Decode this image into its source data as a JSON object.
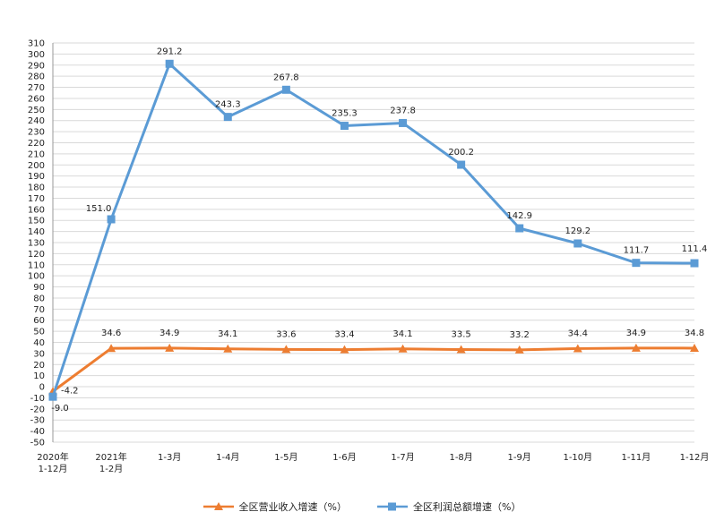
{
  "colors": {
    "revenue": "#ED7D31",
    "profit": "#5B9BD5",
    "grid": "#D9D9D9",
    "axis": "#999999"
  },
  "chart_data": {
    "type": "line",
    "categories": [
      [
        "2020年",
        "1-12月"
      ],
      [
        "2021年",
        "1-2月"
      ],
      [
        "1-3月"
      ],
      [
        "1-4月"
      ],
      [
        "1-5月"
      ],
      [
        "1-6月"
      ],
      [
        "1-7月"
      ],
      [
        "1-8月"
      ],
      [
        "1-9月"
      ],
      [
        "1-10月"
      ],
      [
        "1-11月"
      ],
      [
        "1-12月"
      ]
    ],
    "series": [
      {
        "name": "全区营业收入增速（%）",
        "marker": "triangle",
        "color": "#ED7D31",
        "values": [
          -4.2,
          34.6,
          34.9,
          34.1,
          33.6,
          33.4,
          34.1,
          33.5,
          33.2,
          34.4,
          34.9,
          34.8
        ],
        "labels": [
          "-4.2",
          "34.6",
          "34.9",
          "34.1",
          "33.6",
          "33.4",
          "34.1",
          "33.5",
          "33.2",
          "34.4",
          "34.9",
          "34.8"
        ]
      },
      {
        "name": "全区利润总额增速（%）",
        "marker": "square",
        "color": "#5B9BD5",
        "values": [
          -9.0,
          151.0,
          291.2,
          243.3,
          267.8,
          235.3,
          237.8,
          200.2,
          142.9,
          129.2,
          111.7,
          111.4
        ],
        "labels": [
          "-9.0",
          "151.0",
          "291.2",
          "243.3",
          "267.8",
          "235.3",
          "237.8",
          "200.2",
          "142.9",
          "129.2",
          "111.7",
          "111.4"
        ]
      }
    ],
    "ylim": [
      -50,
      310
    ],
    "ytick_step": 10,
    "grid": true,
    "legend": "bottom",
    "title": "",
    "xlabel": "",
    "ylabel": ""
  }
}
